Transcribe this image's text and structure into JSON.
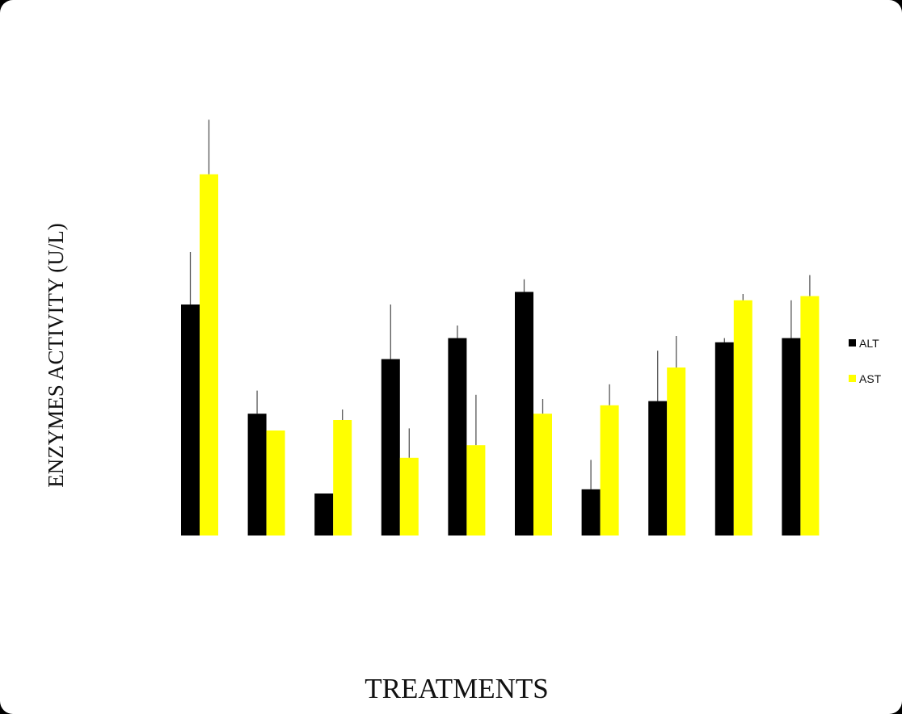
{
  "chart_data": {
    "type": "bar",
    "title": "",
    "xlabel": "TREATMENTS",
    "ylabel": "ENZYMES ACTIVITY (U/L)",
    "categories": [
      "",
      "",
      "",
      "",
      "",
      "",
      "",
      "",
      "",
      ""
    ],
    "ylim": [
      0,
      100
    ],
    "grid": false,
    "legend_position": "right",
    "series": [
      {
        "name": "ALT",
        "color": "#000000",
        "values": [
          55,
          29,
          10,
          42,
          47,
          58,
          11,
          32,
          46,
          47
        ],
        "errors": [
          12.5,
          5.5,
          0,
          13,
          3,
          3,
          7,
          12,
          1,
          9
        ]
      },
      {
        "name": "AST",
        "color": "#ffff00",
        "values": [
          86,
          25,
          27.5,
          18.5,
          21.5,
          29,
          31,
          40,
          56,
          57
        ],
        "errors": [
          13,
          0,
          2.5,
          7,
          12,
          3.5,
          5,
          7.5,
          1.5,
          5
        ]
      }
    ]
  }
}
